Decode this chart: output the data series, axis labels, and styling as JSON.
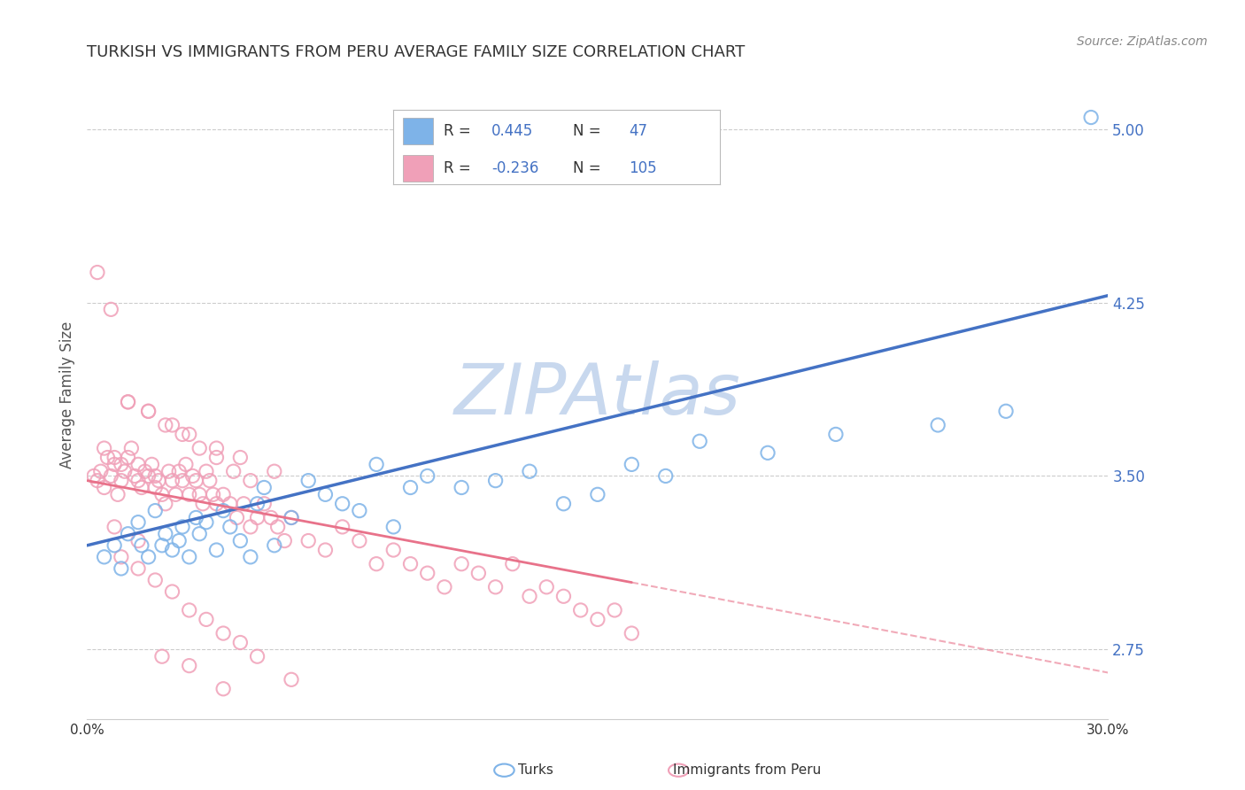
{
  "title": "TURKISH VS IMMIGRANTS FROM PERU AVERAGE FAMILY SIZE CORRELATION CHART",
  "source_text": "Source: ZipAtlas.com",
  "ylabel": "Average Family Size",
  "x_min": 0.0,
  "x_max": 0.3,
  "y_min": 2.45,
  "y_max": 5.25,
  "yticks": [
    2.75,
    3.5,
    4.25,
    5.0
  ],
  "ytick_labels": [
    "2.75",
    "3.50",
    "4.25",
    "5.00"
  ],
  "xticks": [
    0.0,
    0.05,
    0.1,
    0.15,
    0.2,
    0.25,
    0.3
  ],
  "xtick_labels": [
    "0.0%",
    "",
    "",
    "",
    "",
    "",
    "30.0%"
  ],
  "title_color": "#333333",
  "title_fontsize": 13,
  "ytick_color": "#4472c4",
  "source_color": "#888888",
  "blue_color": "#4472c4",
  "pink_color": "#e8728a",
  "blue_marker_color": "#7eb3e8",
  "pink_marker_color": "#f0a0b8",
  "blue_scatter_x": [
    0.005,
    0.008,
    0.01,
    0.012,
    0.015,
    0.016,
    0.018,
    0.02,
    0.022,
    0.023,
    0.025,
    0.027,
    0.028,
    0.03,
    0.032,
    0.033,
    0.035,
    0.038,
    0.04,
    0.042,
    0.045,
    0.048,
    0.05,
    0.052,
    0.055,
    0.06,
    0.065,
    0.07,
    0.075,
    0.08,
    0.085,
    0.09,
    0.095,
    0.1,
    0.11,
    0.12,
    0.13,
    0.14,
    0.15,
    0.16,
    0.17,
    0.18,
    0.2,
    0.22,
    0.25,
    0.27,
    0.295
  ],
  "blue_scatter_y": [
    3.15,
    3.2,
    3.1,
    3.25,
    3.3,
    3.2,
    3.15,
    3.35,
    3.2,
    3.25,
    3.18,
    3.22,
    3.28,
    3.15,
    3.32,
    3.25,
    3.3,
    3.18,
    3.35,
    3.28,
    3.22,
    3.15,
    3.38,
    3.45,
    3.2,
    3.32,
    3.48,
    3.42,
    3.38,
    3.35,
    3.55,
    3.28,
    3.45,
    3.5,
    3.45,
    3.48,
    3.52,
    3.38,
    3.42,
    3.55,
    3.5,
    3.65,
    3.6,
    3.68,
    3.72,
    3.78,
    5.05
  ],
  "pink_scatter_x": [
    0.002,
    0.003,
    0.004,
    0.005,
    0.006,
    0.007,
    0.008,
    0.009,
    0.01,
    0.01,
    0.011,
    0.012,
    0.013,
    0.014,
    0.015,
    0.015,
    0.016,
    0.017,
    0.018,
    0.019,
    0.02,
    0.02,
    0.021,
    0.022,
    0.023,
    0.024,
    0.025,
    0.026,
    0.027,
    0.028,
    0.029,
    0.03,
    0.031,
    0.032,
    0.033,
    0.034,
    0.035,
    0.036,
    0.037,
    0.038,
    0.04,
    0.042,
    0.044,
    0.046,
    0.048,
    0.05,
    0.052,
    0.054,
    0.056,
    0.058,
    0.06,
    0.065,
    0.07,
    0.075,
    0.08,
    0.085,
    0.09,
    0.095,
    0.1,
    0.105,
    0.11,
    0.115,
    0.12,
    0.125,
    0.13,
    0.135,
    0.14,
    0.145,
    0.15,
    0.155,
    0.16,
    0.005,
    0.008,
    0.012,
    0.018,
    0.025,
    0.03,
    0.038,
    0.045,
    0.055,
    0.003,
    0.007,
    0.012,
    0.018,
    0.023,
    0.028,
    0.033,
    0.038,
    0.043,
    0.048,
    0.01,
    0.015,
    0.02,
    0.025,
    0.03,
    0.035,
    0.04,
    0.045,
    0.05,
    0.06,
    0.008,
    0.015,
    0.022,
    0.03,
    0.04
  ],
  "pink_scatter_y": [
    3.5,
    3.48,
    3.52,
    3.45,
    3.58,
    3.5,
    3.55,
    3.42,
    3.48,
    3.55,
    3.52,
    3.58,
    3.62,
    3.5,
    3.55,
    3.48,
    3.45,
    3.52,
    3.5,
    3.55,
    3.5,
    3.45,
    3.48,
    3.42,
    3.38,
    3.52,
    3.48,
    3.42,
    3.52,
    3.48,
    3.55,
    3.42,
    3.5,
    3.48,
    3.42,
    3.38,
    3.52,
    3.48,
    3.42,
    3.38,
    3.42,
    3.38,
    3.32,
    3.38,
    3.28,
    3.32,
    3.38,
    3.32,
    3.28,
    3.22,
    3.32,
    3.22,
    3.18,
    3.28,
    3.22,
    3.12,
    3.18,
    3.12,
    3.08,
    3.02,
    3.12,
    3.08,
    3.02,
    3.12,
    2.98,
    3.02,
    2.98,
    2.92,
    2.88,
    2.92,
    2.82,
    3.62,
    3.58,
    3.82,
    3.78,
    3.72,
    3.68,
    3.62,
    3.58,
    3.52,
    4.38,
    4.22,
    3.82,
    3.78,
    3.72,
    3.68,
    3.62,
    3.58,
    3.52,
    3.48,
    3.15,
    3.1,
    3.05,
    3.0,
    2.92,
    2.88,
    2.82,
    2.78,
    2.72,
    2.62,
    3.28,
    3.22,
    2.72,
    2.68,
    2.58
  ],
  "blue_line_x0": 0.0,
  "blue_line_y0": 3.2,
  "blue_line_x1": 0.3,
  "blue_line_y1": 4.28,
  "pink_line_solid_x0": 0.0,
  "pink_line_solid_y0": 3.48,
  "pink_line_solid_x1": 0.16,
  "pink_line_solid_y1": 3.04,
  "pink_line_dash_x0": 0.16,
  "pink_line_dash_y0": 3.04,
  "pink_line_dash_x1": 0.3,
  "pink_line_dash_y1": 2.65,
  "watermark": "ZIPAtlas",
  "watermark_color": "#c8d8ee",
  "grid_color": "#cccccc",
  "legend_text_color": "#333333",
  "legend_value_color": "#4472c4"
}
